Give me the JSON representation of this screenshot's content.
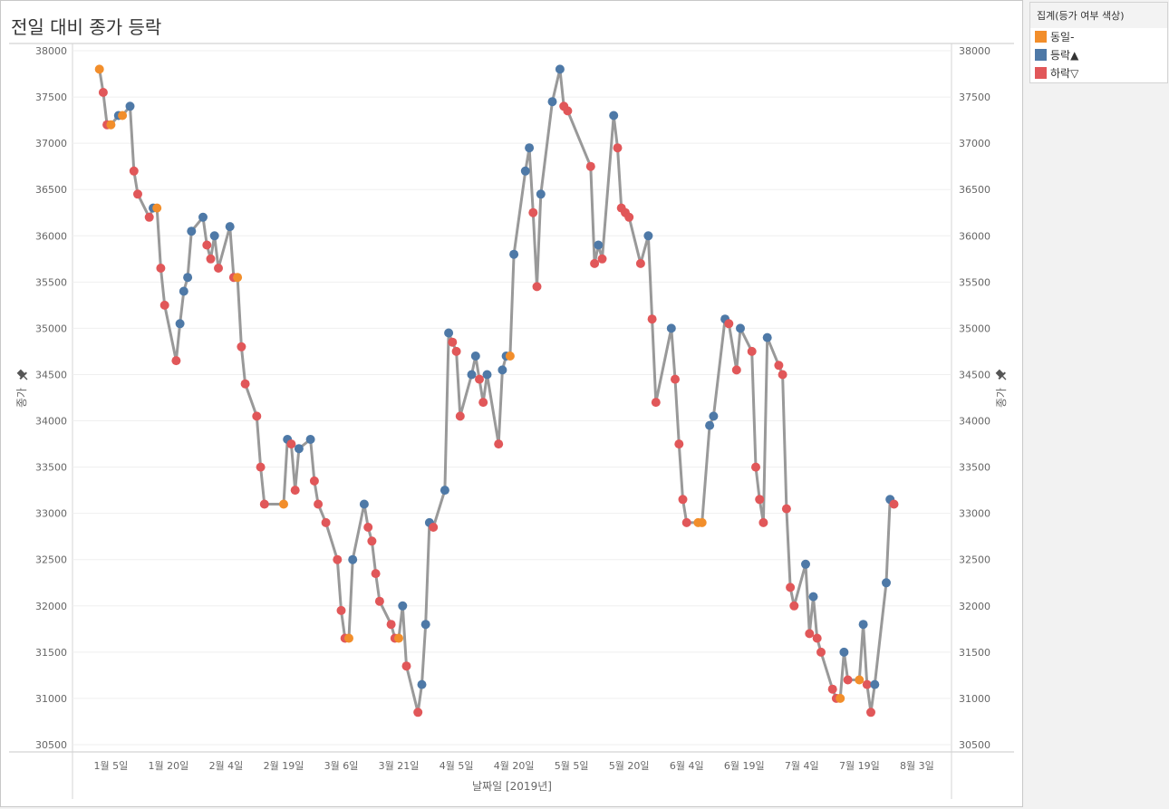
{
  "title": "전일 대비 종가 등락",
  "legend": {
    "title": "집계(등가 여부 색상)",
    "items": [
      {
        "label": "동일-",
        "color": "#f28e2b"
      },
      {
        "label": "등락▲",
        "color": "#4e79a7"
      },
      {
        "label": "하락▽",
        "color": "#e15759"
      }
    ]
  },
  "chart_data": {
    "type": "line",
    "title": "전일 대비 종가 등락",
    "xlabel": "날짜일 [2019년]",
    "ylabel": "종가",
    "ylabel_right": "종가",
    "axis_pin_icon": "pin-icon",
    "ylim": [
      30500,
      38000
    ],
    "yticks": [
      38000,
      37500,
      37000,
      36500,
      36000,
      35500,
      35000,
      34500,
      34000,
      33500,
      33000,
      32500,
      32000,
      31500,
      31000,
      30500
    ],
    "xlim": [
      "2018-12-26",
      "2019-08-12"
    ],
    "xticks": [
      {
        "date": "2019-01-05",
        "label": "1월 5일"
      },
      {
        "date": "2019-01-20",
        "label": "1월 20일"
      },
      {
        "date": "2019-02-04",
        "label": "2월 4일"
      },
      {
        "date": "2019-02-19",
        "label": "2월 19일"
      },
      {
        "date": "2019-03-06",
        "label": "3월 6일"
      },
      {
        "date": "2019-03-21",
        "label": "3월 21일"
      },
      {
        "date": "2019-04-05",
        "label": "4월 5일"
      },
      {
        "date": "2019-04-20",
        "label": "4월 20일"
      },
      {
        "date": "2019-05-05",
        "label": "5월 5일"
      },
      {
        "date": "2019-05-20",
        "label": "5월 20일"
      },
      {
        "date": "2019-06-04",
        "label": "6월 4일"
      },
      {
        "date": "2019-06-19",
        "label": "6월 19일"
      },
      {
        "date": "2019-07-04",
        "label": "7월 4일"
      },
      {
        "date": "2019-07-19",
        "label": "7월 19일"
      },
      {
        "date": "2019-08-03",
        "label": "8월 3일"
      }
    ],
    "grid": true,
    "legend_position": "right",
    "status_colors": {
      "same": "#f28e2b",
      "up": "#4e79a7",
      "down": "#e15759"
    },
    "series": [
      {
        "points": [
          {
            "x": "2019-01-02",
            "y": 37800,
            "status": "same"
          },
          {
            "x": "2019-01-03",
            "y": 37550,
            "status": "down"
          },
          {
            "x": "2019-01-04",
            "y": 37200,
            "status": "down"
          },
          {
            "x": "2019-01-05",
            "y": 37200,
            "status": "same"
          },
          {
            "x": "2019-01-07",
            "y": 37300,
            "status": "up"
          },
          {
            "x": "2019-01-08",
            "y": 37300,
            "status": "same"
          },
          {
            "x": "2019-01-10",
            "y": 37400,
            "status": "up"
          },
          {
            "x": "2019-01-11",
            "y": 36700,
            "status": "down"
          },
          {
            "x": "2019-01-12",
            "y": 36450,
            "status": "down"
          },
          {
            "x": "2019-01-15",
            "y": 36200,
            "status": "down"
          },
          {
            "x": "2019-01-16",
            "y": 36300,
            "status": "up"
          },
          {
            "x": "2019-01-17",
            "y": 36300,
            "status": "same"
          },
          {
            "x": "2019-01-18",
            "y": 35650,
            "status": "down"
          },
          {
            "x": "2019-01-19",
            "y": 35250,
            "status": "down"
          },
          {
            "x": "2019-01-22",
            "y": 34650,
            "status": "down"
          },
          {
            "x": "2019-01-23",
            "y": 35050,
            "status": "up"
          },
          {
            "x": "2019-01-24",
            "y": 35400,
            "status": "up"
          },
          {
            "x": "2019-01-25",
            "y": 35550,
            "status": "up"
          },
          {
            "x": "2019-01-26",
            "y": 36050,
            "status": "up"
          },
          {
            "x": "2019-01-29",
            "y": 36200,
            "status": "up"
          },
          {
            "x": "2019-01-30",
            "y": 35900,
            "status": "down"
          },
          {
            "x": "2019-01-31",
            "y": 35750,
            "status": "down"
          },
          {
            "x": "2019-02-01",
            "y": 36000,
            "status": "up"
          },
          {
            "x": "2019-02-02",
            "y": 35650,
            "status": "down"
          },
          {
            "x": "2019-02-05",
            "y": 36100,
            "status": "up"
          },
          {
            "x": "2019-02-06",
            "y": 35550,
            "status": "down"
          },
          {
            "x": "2019-02-07",
            "y": 35550,
            "status": "same"
          },
          {
            "x": "2019-02-08",
            "y": 34800,
            "status": "down"
          },
          {
            "x": "2019-02-09",
            "y": 34400,
            "status": "down"
          },
          {
            "x": "2019-02-12",
            "y": 34050,
            "status": "down"
          },
          {
            "x": "2019-02-13",
            "y": 33500,
            "status": "down"
          },
          {
            "x": "2019-02-14",
            "y": 33100,
            "status": "down"
          },
          {
            "x": "2019-02-19",
            "y": 33100,
            "status": "same"
          },
          {
            "x": "2019-02-20",
            "y": 33800,
            "status": "up"
          },
          {
            "x": "2019-02-21",
            "y": 33750,
            "status": "down"
          },
          {
            "x": "2019-02-22",
            "y": 33250,
            "status": "down"
          },
          {
            "x": "2019-02-23",
            "y": 33700,
            "status": "up"
          },
          {
            "x": "2019-02-26",
            "y": 33800,
            "status": "up"
          },
          {
            "x": "2019-02-27",
            "y": 33350,
            "status": "down"
          },
          {
            "x": "2019-02-28",
            "y": 33100,
            "status": "down"
          },
          {
            "x": "2019-03-02",
            "y": 32900,
            "status": "down"
          },
          {
            "x": "2019-03-05",
            "y": 32500,
            "status": "down"
          },
          {
            "x": "2019-03-06",
            "y": 31950,
            "status": "down"
          },
          {
            "x": "2019-03-07",
            "y": 31650,
            "status": "down"
          },
          {
            "x": "2019-03-08",
            "y": 31650,
            "status": "same"
          },
          {
            "x": "2019-03-09",
            "y": 32500,
            "status": "up"
          },
          {
            "x": "2019-03-12",
            "y": 33100,
            "status": "up"
          },
          {
            "x": "2019-03-13",
            "y": 32850,
            "status": "down"
          },
          {
            "x": "2019-03-14",
            "y": 32700,
            "status": "down"
          },
          {
            "x": "2019-03-15",
            "y": 32350,
            "status": "down"
          },
          {
            "x": "2019-03-16",
            "y": 32050,
            "status": "down"
          },
          {
            "x": "2019-03-19",
            "y": 31800,
            "status": "down"
          },
          {
            "x": "2019-03-20",
            "y": 31650,
            "status": "down"
          },
          {
            "x": "2019-03-21",
            "y": 31650,
            "status": "same"
          },
          {
            "x": "2019-03-22",
            "y": 32000,
            "status": "up"
          },
          {
            "x": "2019-03-23",
            "y": 31350,
            "status": "down"
          },
          {
            "x": "2019-03-26",
            "y": 30850,
            "status": "down"
          },
          {
            "x": "2019-03-27",
            "y": 31150,
            "status": "up"
          },
          {
            "x": "2019-03-28",
            "y": 31800,
            "status": "up"
          },
          {
            "x": "2019-03-29",
            "y": 32900,
            "status": "up"
          },
          {
            "x": "2019-03-30",
            "y": 32850,
            "status": "down"
          },
          {
            "x": "2019-04-02",
            "y": 33250,
            "status": "up"
          },
          {
            "x": "2019-04-03",
            "y": 34950,
            "status": "up"
          },
          {
            "x": "2019-04-04",
            "y": 34850,
            "status": "down"
          },
          {
            "x": "2019-04-05",
            "y": 34750,
            "status": "down"
          },
          {
            "x": "2019-04-06",
            "y": 34050,
            "status": "down"
          },
          {
            "x": "2019-04-09",
            "y": 34500,
            "status": "up"
          },
          {
            "x": "2019-04-10",
            "y": 34700,
            "status": "up"
          },
          {
            "x": "2019-04-11",
            "y": 34450,
            "status": "down"
          },
          {
            "x": "2019-04-12",
            "y": 34200,
            "status": "down"
          },
          {
            "x": "2019-04-13",
            "y": 34500,
            "status": "up"
          },
          {
            "x": "2019-04-16",
            "y": 33750,
            "status": "down"
          },
          {
            "x": "2019-04-17",
            "y": 34550,
            "status": "up"
          },
          {
            "x": "2019-04-18",
            "y": 34700,
            "status": "up"
          },
          {
            "x": "2019-04-19",
            "y": 34700,
            "status": "same"
          },
          {
            "x": "2019-04-20",
            "y": 35800,
            "status": "up"
          },
          {
            "x": "2019-04-23",
            "y": 36700,
            "status": "up"
          },
          {
            "x": "2019-04-24",
            "y": 36950,
            "status": "up"
          },
          {
            "x": "2019-04-25",
            "y": 36250,
            "status": "down"
          },
          {
            "x": "2019-04-26",
            "y": 35450,
            "status": "down"
          },
          {
            "x": "2019-04-27",
            "y": 36450,
            "status": "up"
          },
          {
            "x": "2019-04-30",
            "y": 37450,
            "status": "up"
          },
          {
            "x": "2019-05-02",
            "y": 37800,
            "status": "up"
          },
          {
            "x": "2019-05-03",
            "y": 37400,
            "status": "down"
          },
          {
            "x": "2019-05-04",
            "y": 37350,
            "status": "down"
          },
          {
            "x": "2019-05-10",
            "y": 36750,
            "status": "down"
          },
          {
            "x": "2019-05-11",
            "y": 35700,
            "status": "down"
          },
          {
            "x": "2019-05-12",
            "y": 35900,
            "status": "up"
          },
          {
            "x": "2019-05-13",
            "y": 35750,
            "status": "down"
          },
          {
            "x": "2019-05-16",
            "y": 37300,
            "status": "up"
          },
          {
            "x": "2019-05-17",
            "y": 36950,
            "status": "down"
          },
          {
            "x": "2019-05-18",
            "y": 36300,
            "status": "down"
          },
          {
            "x": "2019-05-19",
            "y": 36250,
            "status": "down"
          },
          {
            "x": "2019-05-20",
            "y": 36200,
            "status": "down"
          },
          {
            "x": "2019-05-23",
            "y": 35700,
            "status": "down"
          },
          {
            "x": "2019-05-25",
            "y": 36000,
            "status": "up"
          },
          {
            "x": "2019-05-26",
            "y": 35100,
            "status": "down"
          },
          {
            "x": "2019-05-27",
            "y": 34200,
            "status": "down"
          },
          {
            "x": "2019-05-31",
            "y": 35000,
            "status": "up"
          },
          {
            "x": "2019-06-01",
            "y": 34450,
            "status": "down"
          },
          {
            "x": "2019-06-02",
            "y": 33750,
            "status": "down"
          },
          {
            "x": "2019-06-03",
            "y": 33150,
            "status": "down"
          },
          {
            "x": "2019-06-04",
            "y": 32900,
            "status": "down"
          },
          {
            "x": "2019-06-07",
            "y": 32900,
            "status": "same"
          },
          {
            "x": "2019-06-08",
            "y": 32900,
            "status": "same"
          },
          {
            "x": "2019-06-10",
            "y": 33950,
            "status": "up"
          },
          {
            "x": "2019-06-11",
            "y": 34050,
            "status": "up"
          },
          {
            "x": "2019-06-14",
            "y": 35100,
            "status": "up"
          },
          {
            "x": "2019-06-15",
            "y": 35050,
            "status": "down"
          },
          {
            "x": "2019-06-17",
            "y": 34550,
            "status": "down"
          },
          {
            "x": "2019-06-18",
            "y": 35000,
            "status": "up"
          },
          {
            "x": "2019-06-21",
            "y": 34750,
            "status": "down"
          },
          {
            "x": "2019-06-22",
            "y": 33500,
            "status": "down"
          },
          {
            "x": "2019-06-23",
            "y": 33150,
            "status": "down"
          },
          {
            "x": "2019-06-24",
            "y": 32900,
            "status": "down"
          },
          {
            "x": "2019-06-25",
            "y": 34900,
            "status": "up"
          },
          {
            "x": "2019-06-28",
            "y": 34600,
            "status": "down"
          },
          {
            "x": "2019-06-29",
            "y": 34500,
            "status": "down"
          },
          {
            "x": "2019-06-30",
            "y": 33050,
            "status": "down"
          },
          {
            "x": "2019-07-01",
            "y": 32200,
            "status": "down"
          },
          {
            "x": "2019-07-02",
            "y": 32000,
            "status": "down"
          },
          {
            "x": "2019-07-05",
            "y": 32450,
            "status": "up"
          },
          {
            "x": "2019-07-06",
            "y": 31700,
            "status": "down"
          },
          {
            "x": "2019-07-07",
            "y": 32100,
            "status": "up"
          },
          {
            "x": "2019-07-08",
            "y": 31650,
            "status": "down"
          },
          {
            "x": "2019-07-09",
            "y": 31500,
            "status": "down"
          },
          {
            "x": "2019-07-12",
            "y": 31100,
            "status": "down"
          },
          {
            "x": "2019-07-13",
            "y": 31000,
            "status": "down"
          },
          {
            "x": "2019-07-14",
            "y": 31000,
            "status": "same"
          },
          {
            "x": "2019-07-15",
            "y": 31500,
            "status": "up"
          },
          {
            "x": "2019-07-16",
            "y": 31200,
            "status": "down"
          },
          {
            "x": "2019-07-19",
            "y": 31200,
            "status": "same"
          },
          {
            "x": "2019-07-20",
            "y": 31800,
            "status": "up"
          },
          {
            "x": "2019-07-21",
            "y": 31150,
            "status": "down"
          },
          {
            "x": "2019-07-22",
            "y": 30850,
            "status": "down"
          },
          {
            "x": "2019-07-23",
            "y": 31150,
            "status": "up"
          },
          {
            "x": "2019-07-26",
            "y": 32250,
            "status": "up"
          },
          {
            "x": "2019-07-27",
            "y": 33150,
            "status": "up"
          },
          {
            "x": "2019-07-28",
            "y": 33100,
            "status": "down"
          }
        ]
      }
    ]
  }
}
